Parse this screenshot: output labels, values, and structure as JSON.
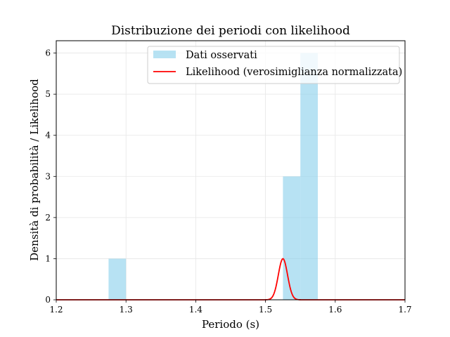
{
  "chart_data": {
    "type": "bar",
    "title": "Distribuzione dei periodi con likelihood",
    "xlabel": "Periodo (s)",
    "ylabel": "Densità di probabilità / Likelihood",
    "xlim": [
      1.2,
      1.7
    ],
    "ylim": [
      0,
      6.3
    ],
    "x_ticks": [
      "1.2",
      "1.3",
      "1.4",
      "1.5",
      "1.6",
      "1.7"
    ],
    "y_ticks": [
      "0",
      "1",
      "2",
      "3",
      "4",
      "5",
      "6"
    ],
    "grid": true,
    "legend_position": "top-right",
    "histogram": {
      "name": "Dati osservati",
      "color": "#87ceeb",
      "bins": [
        {
          "x0": 1.275,
          "x1": 1.3,
          "value": 1
        },
        {
          "x0": 1.525,
          "x1": 1.55,
          "value": 3
        },
        {
          "x0": 1.55,
          "x1": 1.575,
          "value": 6
        }
      ]
    },
    "likelihood": {
      "name": "Likelihood (verosimiglianza normalizzata)",
      "color": "#ff0000",
      "mean": 1.525,
      "sigma": 0.0066,
      "peak": 1.0
    }
  }
}
